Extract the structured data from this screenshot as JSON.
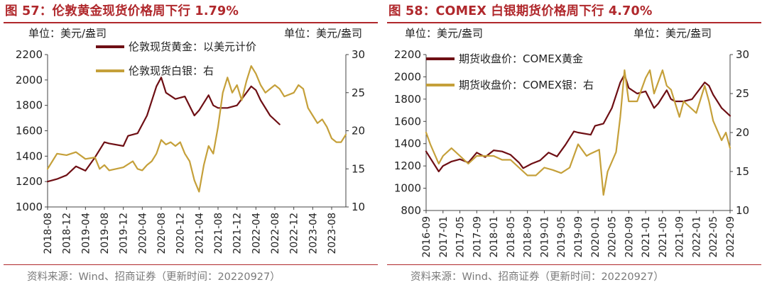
{
  "colors": {
    "title": "#b0282c",
    "gold": "#6e0f14",
    "silver": "#c5a03a",
    "axis": "#444444",
    "source": "#7a7a7a"
  },
  "charts": [
    {
      "title": "图 57：伦敦黄金现货价格周下行 1.79%",
      "source": "资料来源：Wind、招商证券（更新时间：20220927）",
      "chart_data": {
        "type": "line",
        "left_unit": "单位：美元/盎司",
        "right_unit": "单位：美元/盎司",
        "y_left": {
          "min": 1000,
          "max": 2200,
          "ticks": [
            1000,
            1200,
            1400,
            1600,
            1800,
            2000,
            2200
          ]
        },
        "y_right": {
          "min": 10,
          "max": 30,
          "ticks": [
            10,
            15,
            20,
            25,
            30
          ]
        },
        "x_range": [
          "2018-08",
          "2023-11"
        ],
        "x_ticks": [
          "2018-08",
          "2018-12",
          "2019-04",
          "2019-08",
          "2019-12",
          "2020-04",
          "2020-08",
          "2020-12",
          "2021-04",
          "2021-08",
          "2021-12",
          "2022-04",
          "2022-08",
          "2022-12",
          "2023-04",
          "2023-08"
        ],
        "series": [
          {
            "name": "伦敦现货黄金：以美元计价",
            "axis": "left",
            "color": "#6e0f14",
            "points": [
              [
                "2018-08",
                1200
              ],
              [
                "2018-10",
                1220
              ],
              [
                "2018-12",
                1250
              ],
              [
                "2019-02",
                1320
              ],
              [
                "2019-04",
                1285
              ],
              [
                "2019-06",
                1390
              ],
              [
                "2019-08",
                1510
              ],
              [
                "2019-09",
                1500
              ],
              [
                "2019-12",
                1480
              ],
              [
                "2020-01",
                1560
              ],
              [
                "2020-03",
                1580
              ],
              [
                "2020-05",
                1720
              ],
              [
                "2020-07",
                1950
              ],
              [
                "2020-08",
                2020
              ],
              [
                "2020-09",
                1900
              ],
              [
                "2020-11",
                1850
              ],
              [
                "2021-01",
                1870
              ],
              [
                "2021-03",
                1720
              ],
              [
                "2021-04",
                1760
              ],
              [
                "2021-06",
                1880
              ],
              [
                "2021-07",
                1800
              ],
              [
                "2021-08",
                1780
              ],
              [
                "2021-10",
                1780
              ],
              [
                "2021-12",
                1800
              ],
              [
                "2022-02",
                1900
              ],
              [
                "2022-03",
                1950
              ],
              [
                "2022-04",
                1920
              ],
              [
                "2022-05",
                1840
              ],
              [
                "2022-07",
                1720
              ],
              [
                "2022-09",
                1650
              ]
            ]
          },
          {
            "name": "伦敦现货白银：右",
            "axis": "right",
            "color": "#c5a03a",
            "points": [
              [
                "2018-08",
                15.0
              ],
              [
                "2018-09",
                16.0
              ],
              [
                "2018-10",
                17.0
              ],
              [
                "2018-12",
                16.8
              ],
              [
                "2019-02",
                17.2
              ],
              [
                "2019-04",
                16.3
              ],
              [
                "2019-06",
                16.5
              ],
              [
                "2019-07",
                15.0
              ],
              [
                "2019-08",
                15.5
              ],
              [
                "2019-09",
                14.8
              ],
              [
                "2019-12",
                15.2
              ],
              [
                "2020-02",
                16.0
              ],
              [
                "2020-03",
                15.0
              ],
              [
                "2020-04",
                14.8
              ],
              [
                "2020-05",
                15.5
              ],
              [
                "2020-06",
                16.0
              ],
              [
                "2020-07",
                17.0
              ],
              [
                "2020-08",
                18.8
              ],
              [
                "2020-09",
                18.2
              ],
              [
                "2020-10",
                18.5
              ],
              [
                "2020-11",
                18.0
              ],
              [
                "2020-12",
                18.5
              ],
              [
                "2021-01",
                17.0
              ],
              [
                "2021-02",
                16.0
              ],
              [
                "2021-03",
                13.5
              ],
              [
                "2021-04",
                12.0
              ],
              [
                "2021-05",
                15.5
              ],
              [
                "2021-06",
                18.0
              ],
              [
                "2021-07",
                17.0
              ],
              [
                "2021-08",
                20.5
              ],
              [
                "2021-09",
                25.0
              ],
              [
                "2021-10",
                27.0
              ],
              [
                "2021-11",
                25.0
              ],
              [
                "2021-12",
                26.0
              ],
              [
                "2022-01",
                24.0
              ],
              [
                "2022-02",
                26.5
              ],
              [
                "2022-03",
                28.5
              ],
              [
                "2022-04",
                27.5
              ],
              [
                "2022-05",
                26.0
              ],
              [
                "2022-06",
                25.0
              ],
              [
                "2022-07",
                25.5
              ],
              [
                "2022-08",
                26.0
              ],
              [
                "2022-09",
                25.5
              ],
              [
                "2022-10",
                24.5
              ],
              [
                "2022-12",
                25.0
              ],
              [
                "2023-01",
                26.0
              ],
              [
                "2023-02",
                25.5
              ],
              [
                "2023-03",
                23.0
              ],
              [
                "2023-04",
                22.0
              ],
              [
                "2023-05",
                21.0
              ],
              [
                "2023-06",
                21.5
              ],
              [
                "2023-07",
                20.5
              ],
              [
                "2023-08",
                19.0
              ],
              [
                "2023-09",
                18.5
              ],
              [
                "2023-10",
                18.5
              ],
              [
                "2023-11",
                19.5
              ]
            ]
          }
        ]
      }
    },
    {
      "title": "图 58：COMEX 白银期货价格周下行 4.70%",
      "source": "资料来源：Wind、招商证券（更新时间：20220927）",
      "chart_data": {
        "type": "line",
        "left_unit": "单位：美元/盎司",
        "right_unit": "单位：美元/盎司",
        "y_left": {
          "min": 800,
          "max": 2200,
          "ticks": [
            800,
            1000,
            1200,
            1400,
            1600,
            1800,
            2000,
            2200
          ]
        },
        "y_right": {
          "min": 10,
          "max": 30,
          "ticks": [
            10,
            15,
            20,
            25,
            30
          ]
        },
        "x_range": [
          "2016-09",
          "2022-09"
        ],
        "x_ticks": [
          "2016-09",
          "2017-01",
          "2017-05",
          "2017-09",
          "2018-01",
          "2018-05",
          "2018-09",
          "2019-01",
          "2019-05",
          "2019-09",
          "2020-01",
          "2020-05",
          "2020-09",
          "2021-01",
          "2021-05",
          "2021-09",
          "2022-01",
          "2022-05",
          "2022-09"
        ],
        "series": [
          {
            "name": "期货收盘价：COMEX黄金",
            "axis": "left",
            "color": "#6e0f14",
            "points": [
              [
                "2016-09",
                1330
              ],
              [
                "2016-10",
                1270
              ],
              [
                "2016-12",
                1150
              ],
              [
                "2017-01",
                1200
              ],
              [
                "2017-03",
                1240
              ],
              [
                "2017-05",
                1260
              ],
              [
                "2017-07",
                1230
              ],
              [
                "2017-09",
                1320
              ],
              [
                "2017-11",
                1280
              ],
              [
                "2018-01",
                1340
              ],
              [
                "2018-03",
                1330
              ],
              [
                "2018-05",
                1300
              ],
              [
                "2018-07",
                1230
              ],
              [
                "2018-08",
                1180
              ],
              [
                "2018-10",
                1220
              ],
              [
                "2018-12",
                1250
              ],
              [
                "2019-02",
                1320
              ],
              [
                "2019-04",
                1285
              ],
              [
                "2019-06",
                1390
              ],
              [
                "2019-08",
                1510
              ],
              [
                "2019-09",
                1500
              ],
              [
                "2019-12",
                1480
              ],
              [
                "2020-01",
                1560
              ],
              [
                "2020-03",
                1580
              ],
              [
                "2020-05",
                1720
              ],
              [
                "2020-07",
                1950
              ],
              [
                "2020-08",
                2020
              ],
              [
                "2020-09",
                1900
              ],
              [
                "2020-11",
                1850
              ],
              [
                "2021-01",
                1870
              ],
              [
                "2021-03",
                1720
              ],
              [
                "2021-04",
                1760
              ],
              [
                "2021-06",
                1880
              ],
              [
                "2021-07",
                1800
              ],
              [
                "2021-08",
                1780
              ],
              [
                "2021-10",
                1780
              ],
              [
                "2021-12",
                1800
              ],
              [
                "2022-02",
                1900
              ],
              [
                "2022-03",
                1950
              ],
              [
                "2022-04",
                1920
              ],
              [
                "2022-05",
                1840
              ],
              [
                "2022-07",
                1720
              ],
              [
                "2022-09",
                1650
              ]
            ]
          },
          {
            "name": "期货收盘价：COMEX银：右",
            "axis": "right",
            "color": "#c5a03a",
            "points": [
              [
                "2016-09",
                20.0
              ],
              [
                "2016-10",
                18.5
              ],
              [
                "2016-12",
                16.0
              ],
              [
                "2017-01",
                17.0
              ],
              [
                "2017-03",
                18.0
              ],
              [
                "2017-05",
                17.0
              ],
              [
                "2017-07",
                16.0
              ],
              [
                "2017-09",
                17.0
              ],
              [
                "2017-11",
                17.0
              ],
              [
                "2018-01",
                17.0
              ],
              [
                "2018-03",
                16.5
              ],
              [
                "2018-05",
                16.5
              ],
              [
                "2018-07",
                15.5
              ],
              [
                "2018-09",
                14.5
              ],
              [
                "2018-11",
                14.5
              ],
              [
                "2019-01",
                15.5
              ],
              [
                "2019-03",
                15.2
              ],
              [
                "2019-05",
                14.8
              ],
              [
                "2019-07",
                15.5
              ],
              [
                "2019-09",
                18.5
              ],
              [
                "2019-11",
                17.0
              ],
              [
                "2019-12",
                17.3
              ],
              [
                "2020-02",
                17.8
              ],
              [
                "2020-03",
                12.0
              ],
              [
                "2020-04",
                15.0
              ],
              [
                "2020-06",
                17.5
              ],
              [
                "2020-07",
                22.0
              ],
              [
                "2020-08",
                28.0
              ],
              [
                "2020-09",
                24.0
              ],
              [
                "2020-11",
                24.0
              ],
              [
                "2021-01",
                27.0
              ],
              [
                "2021-02",
                28.0
              ],
              [
                "2021-03",
                25.0
              ],
              [
                "2021-05",
                28.0
              ],
              [
                "2021-06",
                26.0
              ],
              [
                "2021-07",
                25.5
              ],
              [
                "2021-09",
                22.0
              ],
              [
                "2021-10",
                24.0
              ],
              [
                "2021-12",
                23.0
              ],
              [
                "2022-01",
                22.5
              ],
              [
                "2022-03",
                26.0
              ],
              [
                "2022-04",
                24.0
              ],
              [
                "2022-05",
                21.5
              ],
              [
                "2022-07",
                19.0
              ],
              [
                "2022-08",
                20.0
              ],
              [
                "2022-09",
                18.0
              ]
            ]
          }
        ]
      }
    }
  ]
}
